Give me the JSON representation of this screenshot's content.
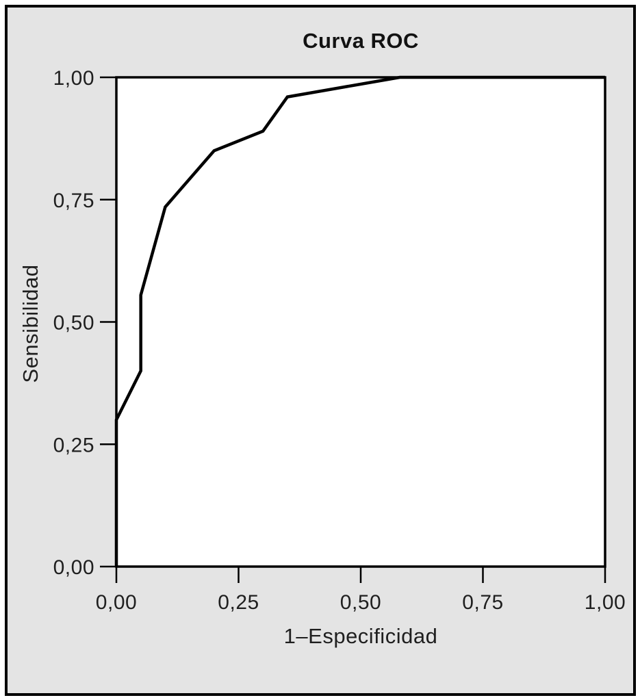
{
  "figure": {
    "background_color": "#e4e4e4",
    "border_color": "#000000"
  },
  "chart_data": {
    "type": "line",
    "title": "Curva ROC",
    "xlabel": "1–Especificidad",
    "ylabel": "Sensibilidad",
    "xlim": [
      0,
      1
    ],
    "ylim": [
      0,
      1
    ],
    "x_ticks": [
      0,
      0.25,
      0.5,
      0.75,
      1
    ],
    "x_tick_labels": [
      "0,00",
      "0,25",
      "0,50",
      "0,75",
      "1,00"
    ],
    "y_ticks": [
      0,
      0.25,
      0.5,
      0.75,
      1
    ],
    "y_tick_labels": [
      "0,00",
      "0,25",
      "0,50",
      "0,75",
      "1,00"
    ],
    "grid": false,
    "legend": false,
    "decimal_style": "comma",
    "series": [
      {
        "name": "ROC curve",
        "points": [
          [
            0.0,
            0.0
          ],
          [
            0.0,
            0.3
          ],
          [
            0.05,
            0.4
          ],
          [
            0.05,
            0.555
          ],
          [
            0.1,
            0.735
          ],
          [
            0.2,
            0.85
          ],
          [
            0.3,
            0.89
          ],
          [
            0.35,
            0.96
          ],
          [
            0.58,
            1.0
          ],
          [
            1.0,
            1.0
          ]
        ]
      }
    ],
    "colors": {
      "curve": "#000000",
      "frame": "#000000",
      "text": "#1f1f1f",
      "plot_background": "#ffffff",
      "figure_background": "#e4e4e4"
    }
  }
}
